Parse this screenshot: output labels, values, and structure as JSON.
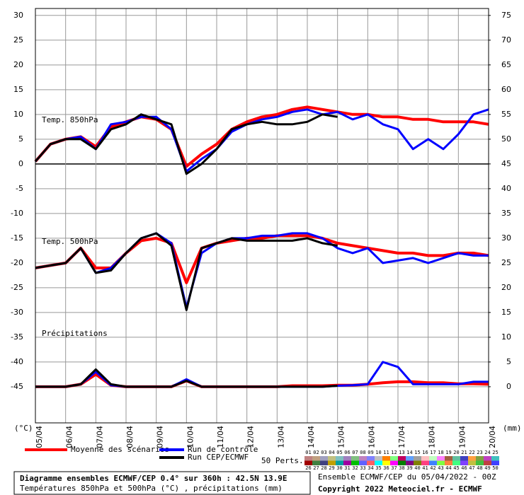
{
  "chart_data": {
    "type": "line",
    "title": "Diagramme ensembles ECMWF/CEP 0.4° sur 360h : 42.5N 13.9E",
    "subtitle": "Températures 850hPa et 500hPa (°C) , précipitations (mm)",
    "run_info": "Ensemble ECMWF/CEP du 05/04/2022 - 00Z",
    "copyright": "Copyright 2022 Meteociel.fr - ECMWF",
    "y_label": "(°C)",
    "y2_label": "(mm)",
    "panel_labels": {
      "t850": "Temp. 850hPa",
      "t500": "Temp. 500hPa",
      "precip": "Précipitations"
    },
    "categories": [
      "05/04",
      null,
      "06/04",
      null,
      "07/04",
      null,
      "08/04",
      null,
      "09/04",
      null,
      "10/04",
      null,
      "11/04",
      null,
      "12/04",
      null,
      "13/04",
      null,
      "14/04",
      null,
      "15/04",
      null,
      "16/04",
      null,
      "17/04",
      null,
      "18/04",
      null,
      "19/04",
      null,
      "20/04"
    ],
    "ylim": [
      -52.3,
      31.4
    ],
    "yticks": [
      30,
      25,
      20,
      15,
      10,
      5,
      0,
      -5,
      -10,
      -15,
      -20,
      -25,
      -30,
      -35,
      -40,
      -45
    ],
    "y2lim": [
      -7.3,
      76.4
    ],
    "y2ticks": [
      75,
      70,
      65,
      60,
      55,
      50,
      45,
      40,
      35,
      30,
      25,
      20,
      15,
      10,
      5,
      0
    ],
    "grid": true,
    "series": [
      {
        "name": "Moyenne des scénarios",
        "color": "#ff0000",
        "width": 4,
        "t850": [
          0.5,
          4,
          5,
          5.5,
          3.5,
          7.5,
          8.5,
          9.5,
          9,
          7,
          -0.5,
          2,
          4,
          7,
          8.5,
          9.5,
          10,
          11,
          11.5,
          11,
          10.5,
          10,
          10,
          9.5,
          9.5,
          9,
          9,
          8.5,
          8.5,
          8.5,
          8
        ],
        "t500": [
          -21,
          -20.5,
          -20,
          -17,
          -21,
          -21,
          -18,
          -15.5,
          -15,
          -16,
          -24,
          -17,
          -16,
          -15.5,
          -15,
          -15,
          -14.5,
          -14.5,
          -14.5,
          -15,
          -16,
          -16.5,
          -17,
          -17.5,
          -18,
          -18,
          -18.5,
          -18.5,
          -18,
          -18,
          -18.5
        ],
        "precip": [
          0,
          0,
          0,
          0.5,
          2.5,
          0.3,
          0,
          0,
          0,
          0,
          1.2,
          0,
          0,
          0,
          0,
          0,
          0,
          0.2,
          0.2,
          0.2,
          0.3,
          0.3,
          0.5,
          0.8,
          1,
          1,
          0.8,
          0.8,
          0.6,
          0.6,
          0.5
        ]
      },
      {
        "name": "Run de contrôle",
        "color": "#0000ff",
        "width": 3,
        "t850": [
          0.5,
          4,
          5,
          5.5,
          3,
          8,
          8.5,
          9.5,
          9.5,
          7,
          -1.5,
          1,
          3,
          6.5,
          8,
          9,
          9.5,
          10.5,
          11,
          10,
          10.5,
          9,
          10,
          8,
          7,
          3,
          5,
          3,
          6,
          10,
          11
        ],
        "t500": [
          -21,
          -20.5,
          -20,
          -17,
          -22,
          -21,
          -18,
          -15,
          -14,
          -16,
          -29,
          -18,
          -16,
          -15,
          -15,
          -14.5,
          -14.5,
          -14,
          -14,
          -15,
          -17,
          -18,
          -17,
          -20,
          -19.5,
          -19,
          -20,
          -19,
          -18,
          -18.5,
          -18.5
        ],
        "precip": [
          0,
          0,
          0,
          0.5,
          3,
          0.3,
          0,
          0,
          0,
          0,
          1.5,
          0,
          0,
          0,
          0,
          0,
          0,
          0,
          0,
          0,
          0.2,
          0.3,
          0.5,
          5,
          4,
          0.5,
          0.5,
          0.5,
          0.5,
          1,
          1
        ]
      },
      {
        "name": "Run CEP/ECMWF",
        "color": "#000000",
        "width": 3,
        "t850": [
          0.5,
          4,
          5,
          5,
          3,
          7,
          8,
          10,
          9,
          8,
          -2,
          0,
          3,
          7,
          8,
          8.5,
          8,
          8,
          8.5,
          10,
          9.5,
          null,
          null,
          null,
          null,
          null,
          null,
          null,
          null,
          null,
          null
        ],
        "t500": [
          -21,
          -20.5,
          -20,
          -17,
          -22,
          -21.5,
          -18,
          -15,
          -14,
          -16.5,
          -29.5,
          -17,
          -16,
          -15,
          -15.5,
          -15.5,
          -15.5,
          -15.5,
          -15,
          -16,
          -16.5,
          null,
          null,
          null,
          null,
          null,
          null,
          null,
          null,
          null,
          null
        ],
        "precip": [
          0,
          0,
          0,
          0.5,
          3.5,
          0.5,
          0,
          0,
          0,
          0,
          1.2,
          0,
          0,
          0,
          0,
          0,
          0,
          0,
          0,
          0,
          0.2,
          null,
          null,
          null,
          null,
          null,
          null,
          null,
          null,
          null,
          null
        ]
      }
    ],
    "perturbations_label": "50 Perts.",
    "perturbations": [
      {
        "name": "01",
        "color": "#c08080"
      },
      {
        "name": "02",
        "color": "#c0a080"
      },
      {
        "name": "03",
        "color": "#a0a0c0"
      },
      {
        "name": "04",
        "color": "#c0c080"
      },
      {
        "name": "05",
        "color": "#80c0c0"
      },
      {
        "name": "06",
        "color": "#a080c0"
      },
      {
        "name": "07",
        "color": "#80c080"
      },
      {
        "name": "08",
        "color": "#c080c0"
      },
      {
        "name": "09",
        "color": "#8080ff"
      },
      {
        "name": "10",
        "color": "#c0c0c0"
      },
      {
        "name": "11",
        "color": "#ff8000"
      },
      {
        "name": "12",
        "color": "#80ff80"
      },
      {
        "name": "13",
        "color": "#c00060"
      },
      {
        "name": "14",
        "color": "#60a0ff"
      },
      {
        "name": "15",
        "color": "#a0a0a0"
      },
      {
        "name": "16",
        "color": "#ffc0c0"
      },
      {
        "name": "17",
        "color": "#c0ffc0"
      },
      {
        "name": "18",
        "color": "#ff80ff"
      },
      {
        "name": "19",
        "color": "#a06040"
      },
      {
        "name": "20",
        "color": "#60c0a0"
      },
      {
        "name": "21",
        "color": "#4040c0"
      },
      {
        "name": "22",
        "color": "#ffa040"
      },
      {
        "name": "23",
        "color": "#80a040"
      },
      {
        "name": "24",
        "color": "#c040c0"
      },
      {
        "name": "25",
        "color": "#40c0c0"
      },
      {
        "name": "26",
        "color": "#a00000"
      },
      {
        "name": "27",
        "color": "#408040"
      },
      {
        "name": "28",
        "color": "#404080"
      },
      {
        "name": "29",
        "color": "#c0a000"
      },
      {
        "name": "30",
        "color": "#00a0a0"
      },
      {
        "name": "31",
        "color": "#a000a0"
      },
      {
        "name": "32",
        "color": "#00c000"
      },
      {
        "name": "33",
        "color": "#6060ff"
      },
      {
        "name": "34",
        "color": "#ff6060"
      },
      {
        "name": "35",
        "color": "#00ffff"
      },
      {
        "name": "36",
        "color": "#ffff00"
      },
      {
        "name": "37",
        "color": "#ff00ff"
      },
      {
        "name": "38",
        "color": "#008000"
      },
      {
        "name": "39",
        "color": "#800080"
      },
      {
        "name": "40",
        "color": "#808000"
      },
      {
        "name": "41",
        "color": "#ff4080"
      },
      {
        "name": "42",
        "color": "#4080ff"
      },
      {
        "name": "43",
        "color": "#80ff40"
      },
      {
        "name": "44",
        "color": "#ff8040"
      },
      {
        "name": "45",
        "color": "#40ff80"
      },
      {
        "name": "46",
        "color": "#8040ff"
      },
      {
        "name": "47",
        "color": "#c0c040"
      },
      {
        "name": "48",
        "color": "#40c040"
      },
      {
        "name": "49",
        "color": "#c04040"
      },
      {
        "name": "50",
        "color": "#4040ff"
      }
    ]
  }
}
